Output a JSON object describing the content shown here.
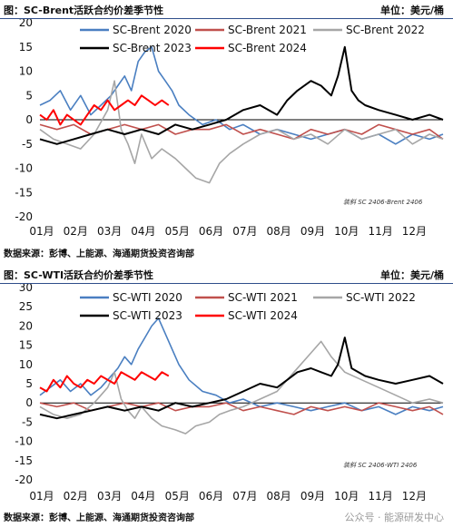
{
  "panels": [
    {
      "title": "图：SC-Brent活跃合约价差季节性",
      "unit": "单位：美元/桶",
      "source": "数据来源：彭博、上能源、海通期货投资咨询部"
    },
    {
      "title": "图：SC-WTI活跃合约价差季节性",
      "unit": "单位：美元/桶",
      "source": "数据来源：彭博、上能源、海通期货投资咨询部"
    }
  ],
  "watermark": "公众号 · 能源研发中心",
  "chart_data": [
    {
      "type": "line",
      "title": "",
      "xlabel": "",
      "ylabel": "",
      "categories": [
        "01月",
        "02月",
        "03月",
        "04月",
        "05月",
        "06月",
        "07月",
        "08月",
        "09月",
        "10月",
        "11月",
        "12月"
      ],
      "xlim": [
        1,
        12.9
      ],
      "ylim": [
        -20,
        20
      ],
      "yticks": [
        20,
        15,
        10,
        5,
        0,
        -5,
        -10,
        -15,
        -20
      ],
      "grid": false,
      "legend": "top",
      "annotation": "装斜 SC 2406-Brent 2406",
      "series": [
        {
          "name": "SC-Brent 2020",
          "color": "#4a7fc1",
          "x": [
            1.0,
            1.3,
            1.6,
            1.9,
            2.2,
            2.5,
            2.8,
            3.1,
            3.3,
            3.5,
            3.7,
            3.9,
            4.1,
            4.3,
            4.5,
            4.7,
            4.9,
            5.1,
            5.4,
            5.8,
            6.2,
            6.6,
            7.0,
            7.5,
            8.0,
            8.5,
            9.0,
            9.5,
            10.0,
            10.5,
            11.0,
            11.5,
            12.0,
            12.5,
            12.9
          ],
          "values": [
            3,
            4,
            6,
            2,
            5,
            1,
            3,
            5,
            7,
            9,
            6,
            12,
            14,
            15,
            10,
            8,
            6,
            3,
            1,
            -1,
            0,
            -2,
            -1,
            -3,
            -2,
            -3,
            -4,
            -3,
            -2,
            -4,
            -3,
            -5,
            -3,
            -4,
            -3
          ]
        },
        {
          "name": "SC-Brent 2021",
          "color": "#c0504d",
          "x": [
            1.0,
            1.5,
            2.0,
            2.5,
            3.0,
            3.5,
            4.0,
            4.5,
            5.0,
            5.5,
            6.0,
            6.5,
            7.0,
            7.5,
            8.0,
            8.5,
            9.0,
            9.5,
            10.0,
            10.5,
            11.0,
            11.5,
            12.0,
            12.5,
            12.9
          ],
          "values": [
            -1,
            -2,
            -1,
            -3,
            -2,
            -1,
            -2,
            -1,
            -3,
            -2,
            -2,
            -1,
            -3,
            -2,
            -3,
            -4,
            -2,
            -3,
            -2,
            -3,
            -1,
            -2,
            -3,
            -2,
            -4
          ]
        },
        {
          "name": "SC-Brent 2022",
          "color": "#a6a6a6",
          "x": [
            1.0,
            1.4,
            1.8,
            2.2,
            2.6,
            3.0,
            3.2,
            3.4,
            3.6,
            3.8,
            4.0,
            4.3,
            4.6,
            5.0,
            5.3,
            5.6,
            6.0,
            6.3,
            6.6,
            7.0,
            7.5,
            8.0,
            8.5,
            9.0,
            9.5,
            10.0,
            10.5,
            11.0,
            11.5,
            12.0,
            12.5,
            12.9
          ],
          "values": [
            -2,
            -4,
            -5,
            -6,
            -3,
            2,
            8,
            -2,
            -5,
            -9,
            -3,
            -8,
            -6,
            -8,
            -10,
            -12,
            -13,
            -9,
            -7,
            -5,
            -3,
            -2,
            -4,
            -3,
            -5,
            -2,
            -4,
            -3,
            -2,
            -5,
            -3,
            -4
          ]
        },
        {
          "name": "SC-Brent 2023",
          "color": "#000000",
          "x": [
            1.0,
            1.5,
            2.0,
            2.5,
            3.0,
            3.5,
            4.0,
            4.5,
            5.0,
            5.5,
            6.0,
            6.5,
            7.0,
            7.5,
            8.0,
            8.3,
            8.6,
            9.0,
            9.3,
            9.6,
            9.8,
            10.0,
            10.2,
            10.4,
            10.6,
            11.0,
            11.5,
            12.0,
            12.5,
            12.9
          ],
          "values": [
            -4,
            -5,
            -4,
            -3,
            -2,
            -3,
            -2,
            -3,
            -1,
            -2,
            -1,
            0,
            2,
            3,
            1,
            4,
            6,
            8,
            7,
            5,
            9,
            15,
            6,
            4,
            3,
            2,
            1,
            0,
            1,
            0
          ]
        },
        {
          "name": "SC-Brent 2024",
          "color": "#ff0000",
          "x": [
            1.0,
            1.2,
            1.4,
            1.6,
            1.8,
            2.0,
            2.2,
            2.4,
            2.6,
            2.8,
            3.0,
            3.2,
            3.4,
            3.6,
            3.8,
            4.0,
            4.2,
            4.4,
            4.6,
            4.8
          ],
          "values": [
            1,
            0,
            2,
            -1,
            1,
            0,
            -1,
            1,
            3,
            2,
            4,
            2,
            3,
            4,
            3,
            5,
            4,
            3,
            4,
            3
          ]
        }
      ]
    },
    {
      "type": "line",
      "title": "",
      "xlabel": "",
      "ylabel": "",
      "categories": [
        "01月",
        "02月",
        "03月",
        "04月",
        "05月",
        "06月",
        "07月",
        "08月",
        "09月",
        "10月",
        "11月",
        "12月"
      ],
      "xlim": [
        1,
        12.9
      ],
      "ylim": [
        -20,
        30
      ],
      "yticks": [
        30,
        25,
        20,
        15,
        10,
        5,
        0,
        -5,
        -10,
        -15,
        -20
      ],
      "grid": false,
      "legend": "top",
      "annotation": "装斜 SC 2406-WTI 2406",
      "series": [
        {
          "name": "SC-WTI 2020",
          "color": "#4a7fc1",
          "x": [
            1.0,
            1.3,
            1.6,
            1.9,
            2.2,
            2.5,
            2.8,
            3.1,
            3.3,
            3.5,
            3.7,
            3.9,
            4.1,
            4.3,
            4.5,
            4.7,
            4.9,
            5.1,
            5.4,
            5.8,
            6.2,
            6.6,
            7.0,
            7.5,
            8.0,
            8.5,
            9.0,
            9.5,
            10.0,
            10.5,
            11.0,
            11.5,
            12.0,
            12.5,
            12.9
          ],
          "values": [
            2,
            4,
            6,
            3,
            5,
            2,
            4,
            7,
            9,
            12,
            10,
            14,
            17,
            20,
            22,
            18,
            14,
            10,
            6,
            3,
            2,
            0,
            1,
            -1,
            0,
            -1,
            -2,
            -1,
            0,
            -2,
            -1,
            -3,
            -1,
            -2,
            -1
          ]
        },
        {
          "name": "SC-WTI 2021",
          "color": "#c0504d",
          "x": [
            1.0,
            1.5,
            2.0,
            2.5,
            3.0,
            3.5,
            4.0,
            4.5,
            5.0,
            5.5,
            6.0,
            6.5,
            7.0,
            7.5,
            8.0,
            8.5,
            9.0,
            9.5,
            10.0,
            10.5,
            11.0,
            11.5,
            12.0,
            12.5,
            12.9
          ],
          "values": [
            0,
            -1,
            0,
            -2,
            -1,
            0,
            -1,
            0,
            -2,
            -1,
            -1,
            0,
            -2,
            -1,
            -2,
            -3,
            -1,
            -2,
            -1,
            -2,
            0,
            -1,
            -2,
            -1,
            -3
          ]
        },
        {
          "name": "SC-WTI 2022",
          "color": "#a6a6a6",
          "x": [
            1.0,
            1.4,
            1.8,
            2.2,
            2.6,
            3.0,
            3.2,
            3.4,
            3.6,
            3.8,
            4.0,
            4.3,
            4.6,
            5.0,
            5.3,
            5.6,
            6.0,
            6.3,
            6.6,
            7.0,
            7.5,
            8.0,
            8.5,
            9.0,
            9.3,
            9.6,
            10.0,
            10.5,
            11.0,
            11.5,
            12.0,
            12.5,
            12.9
          ],
          "values": [
            -1,
            -3,
            -4,
            -3,
            0,
            4,
            8,
            1,
            -2,
            -4,
            -1,
            -4,
            -6,
            -7,
            -8,
            -6,
            -5,
            -3,
            -2,
            -1,
            1,
            3,
            8,
            13,
            16,
            12,
            8,
            6,
            4,
            2,
            0,
            1,
            0
          ]
        },
        {
          "name": "SC-WTI 2023",
          "color": "#000000",
          "x": [
            1.0,
            1.5,
            2.0,
            2.5,
            3.0,
            3.5,
            4.0,
            4.5,
            5.0,
            5.5,
            6.0,
            6.5,
            7.0,
            7.5,
            8.0,
            8.3,
            8.6,
            9.0,
            9.3,
            9.6,
            9.8,
            10.0,
            10.2,
            10.4,
            10.6,
            11.0,
            11.5,
            12.0,
            12.5,
            12.9
          ],
          "values": [
            -3,
            -4,
            -3,
            -2,
            -1,
            -2,
            -1,
            -2,
            0,
            -1,
            0,
            1,
            3,
            5,
            4,
            6,
            8,
            9,
            8,
            7,
            10,
            17,
            9,
            8,
            7,
            6,
            5,
            6,
            7,
            5
          ]
        },
        {
          "name": "SC-WTI 2024",
          "color": "#ff0000",
          "x": [
            1.0,
            1.2,
            1.4,
            1.6,
            1.8,
            2.0,
            2.2,
            2.4,
            2.6,
            2.8,
            3.0,
            3.2,
            3.4,
            3.6,
            3.8,
            4.0,
            4.2,
            4.4,
            4.6,
            4.8
          ],
          "values": [
            4,
            3,
            6,
            4,
            7,
            5,
            4,
            6,
            5,
            7,
            6,
            5,
            8,
            7,
            6,
            8,
            7,
            6,
            8,
            7
          ]
        }
      ]
    }
  ]
}
